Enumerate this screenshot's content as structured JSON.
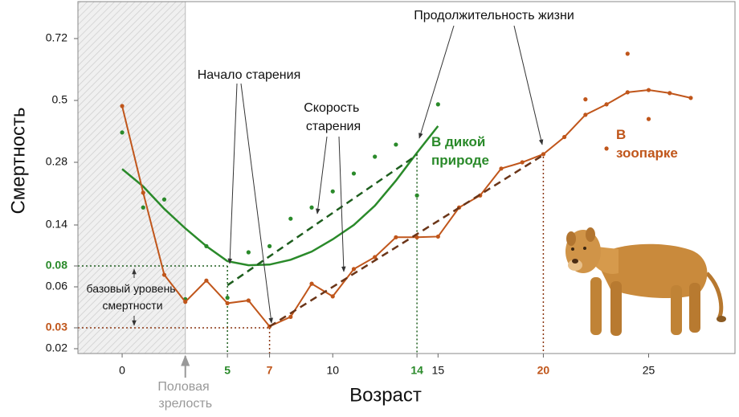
{
  "chart_data": {
    "type": "line",
    "xlabel": "Возраст",
    "ylabel": "Смертность",
    "xlim": [
      -2.1,
      29.1
    ],
    "ylim": [
      0.018,
      0.85
    ],
    "xticks": [
      0,
      5,
      7,
      10,
      14,
      15,
      20,
      25
    ],
    "xtick_colors": [
      "#111111",
      "#2a8a2a",
      "#c0561b",
      "#111111",
      "#2a8a2a",
      "#111111",
      "#c0561b",
      "#111111"
    ],
    "yticks": [
      0.02,
      0.03,
      0.06,
      0.08,
      0.14,
      0.28,
      0.5,
      0.72
    ],
    "ytick_colors": [
      "#111111",
      "#c0561b",
      "#111111",
      "#2a8a2a",
      "#111111",
      "#111111",
      "#111111",
      "#111111"
    ],
    "maturity": {
      "label": "Половая зрелость",
      "x": 3
    },
    "series": [
      {
        "style": "points",
        "color": "#2a8a2a",
        "x": [
          0,
          1,
          2,
          3,
          4,
          5,
          6,
          7,
          8,
          9,
          10,
          11,
          12,
          13,
          14,
          15
        ],
        "values": [
          0.386,
          0.179,
          0.197,
          0.051,
          0.109,
          0.052,
          0.1,
          0.109,
          0.154,
          0.179,
          0.215,
          0.255,
          0.3,
          0.343,
          0.206,
          0.486
        ]
      },
      {
        "style": "line",
        "name": "В дикой природе",
        "color": "#2a8a2a",
        "x": [
          0,
          1,
          2,
          3,
          4,
          5,
          6,
          7,
          8,
          9,
          10,
          11,
          12,
          13,
          14,
          15
        ],
        "values": [
          0.265,
          0.226,
          0.176,
          0.135,
          0.109,
          0.087,
          0.081,
          0.082,
          0.089,
          0.101,
          0.119,
          0.14,
          0.183,
          0.239,
          0.314,
          0.409
        ]
      },
      {
        "style": "dashed",
        "color": "#1e5e1e",
        "x": [
          5,
          14
        ],
        "values": [
          0.0615,
          0.306
        ]
      },
      {
        "style": "line+points",
        "name": "В зоопарке",
        "color": "#c0561b",
        "x": [
          0,
          1,
          2,
          3,
          4,
          5,
          6,
          7,
          8,
          9,
          10,
          11,
          12,
          13,
          14,
          15,
          16,
          17,
          18,
          19,
          20,
          21,
          22,
          23,
          24,
          25,
          26,
          27
        ],
        "values": [
          0.48,
          0.212,
          0.0715,
          0.049,
          0.066,
          0.048,
          0.05,
          0.031,
          0.038,
          0.063,
          0.053,
          0.077,
          0.093,
          0.122,
          0.122,
          0.123,
          0.179,
          0.206,
          0.266,
          0.28,
          0.309,
          0.37,
          0.449,
          0.486,
          0.529,
          0.537,
          0.526,
          0.509
        ]
      },
      {
        "style": "points",
        "color": "#c0561b",
        "x": [
          22,
          23,
          24,
          25
        ],
        "values": [
          0.504,
          0.329,
          0.666,
          0.434
        ]
      },
      {
        "style": "dashed",
        "color": "#6b3518",
        "x": [
          7,
          20
        ],
        "values": [
          0.031,
          0.306
        ]
      }
    ],
    "reference_points": [
      {
        "x": 5,
        "y": 0.08,
        "color": "#1e5e1e",
        "horizontal": true
      },
      {
        "x": 7,
        "y": 0.03,
        "color": "#8a3510",
        "horizontal": true
      },
      {
        "x": 14,
        "y": 0.31,
        "color": "#1e5e1e",
        "horizontal": false
      },
      {
        "x": 20,
        "y": 0.3,
        "color": "#8a3510",
        "horizontal": false
      }
    ],
    "annotations": [
      "Начало старения",
      "Скорость старения",
      "Продолжительность жизни",
      "базовый уровень смертности"
    ]
  }
}
